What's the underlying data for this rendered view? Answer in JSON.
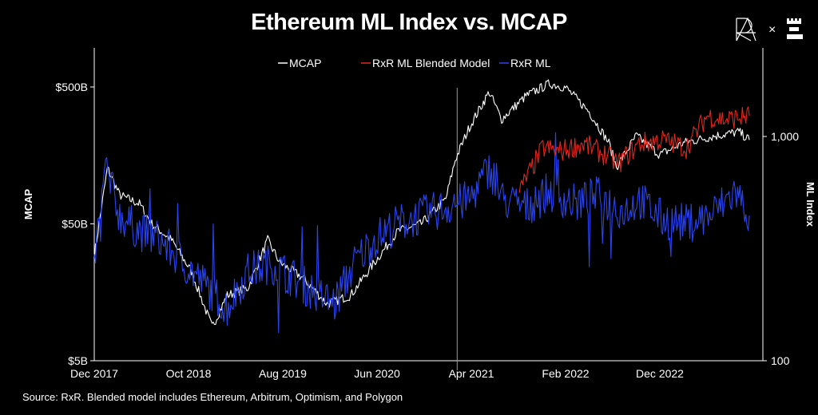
{
  "chart_data": {
    "type": "line",
    "title": "Ethereum ML Index vs. MCAP",
    "ylabel": "MCAP",
    "y2label": "ML Index",
    "source": "Source: RxR. Blended model includes Ethereum, Arbitrum, Optimism, and Polygon",
    "x_unit": "months since Dec 2017",
    "xlim": [
      0,
      71
    ],
    "x_ticks": [
      {
        "x": 0,
        "label": "Dec 2017"
      },
      {
        "x": 10,
        "label": "Oct 2018"
      },
      {
        "x": 20,
        "label": "Aug 2019"
      },
      {
        "x": 30,
        "label": "Jun 2020"
      },
      {
        "x": 40,
        "label": "Apr 2021"
      },
      {
        "x": 50,
        "label": "Feb 2022"
      },
      {
        "x": 60,
        "label": "Dec 2022"
      }
    ],
    "y_scale": "log",
    "ylim": [
      5,
      1000
    ],
    "y_ticks": [
      {
        "v": 5,
        "label": "$5B"
      },
      {
        "v": 50,
        "label": "$50B"
      },
      {
        "v": 500,
        "label": "$500B"
      }
    ],
    "y2_scale": "log",
    "y2lim": [
      100,
      2700
    ],
    "y2_ticks": [
      {
        "v": 100,
        "label": "100"
      },
      {
        "v": 1000,
        "label": "1,000"
      }
    ],
    "vline_x": 38.5,
    "legend": {
      "placement": "top-center"
    },
    "series": [
      {
        "name": "MCAP",
        "axis": "left",
        "color": "#ffffff",
        "x": [
          0,
          1.4,
          2.7,
          4.8,
          6.1,
          8.2,
          10.3,
          12.5,
          14.1,
          16.3,
          18.4,
          19.7,
          22.2,
          24.7,
          27.2,
          29.7,
          32.2,
          34.7,
          37.3,
          38.3,
          39.8,
          41.9,
          43.2,
          45.8,
          48.3,
          50,
          52.5,
          54.6,
          55.4,
          57.5,
          60,
          62.5,
          65.9,
          68.4,
          69.5
        ],
        "y": [
          29,
          128,
          81,
          70,
          50,
          38,
          22.5,
          8.8,
          15,
          17,
          38,
          26,
          20,
          13,
          15,
          26,
          44,
          50,
          76,
          147,
          255,
          460,
          290,
          430,
          530,
          495,
          330,
          195,
          130,
          220,
          160,
          195,
          220,
          235,
          205
        ]
      },
      {
        "name": "RxR ML Blended Model",
        "axis": "right",
        "color": "#e0271f",
        "x": [
          45.1,
          47.6,
          49.3,
          51.9,
          54.4,
          55.6,
          57.8,
          60.3,
          62.8,
          65,
          67,
          69.5
        ],
        "y": [
          567,
          891,
          855,
          928,
          820,
          758,
          928,
          966,
          891,
          1237,
          1188,
          1237
        ]
      },
      {
        "name": "RxR ML",
        "axis": "right",
        "color": "#2a44f0",
        "x": [
          0,
          1.2,
          2.7,
          4.8,
          6.9,
          9.5,
          12,
          14.1,
          16.3,
          18.8,
          21.3,
          23.8,
          25.5,
          27.6,
          29.7,
          32.2,
          34.7,
          37.3,
          39.8,
          42,
          43.2,
          45.8,
          48.3,
          51,
          53.4,
          56.1,
          57.8,
          60.3,
          62.8,
          65.4,
          68,
          69.5
        ],
        "y": [
          272,
          727,
          444,
          378,
          347,
          272,
          213,
          173,
          250,
          272,
          231,
          196,
          180,
          272,
          347,
          409,
          444,
          482,
          524,
          727,
          524,
          482,
          567,
          502,
          545,
          464,
          524,
          426,
          409,
          444,
          567,
          444
        ]
      }
    ]
  },
  "header": {
    "title": "Ethereum ML Index vs. MCAP",
    "logo_separator": "×"
  },
  "footer": {
    "source": "Source: RxR. Blended model includes Ethereum, Arbitrum, Optimism, and Polygon"
  },
  "logos": {
    "left": "RxR",
    "right": "tower logo"
  }
}
